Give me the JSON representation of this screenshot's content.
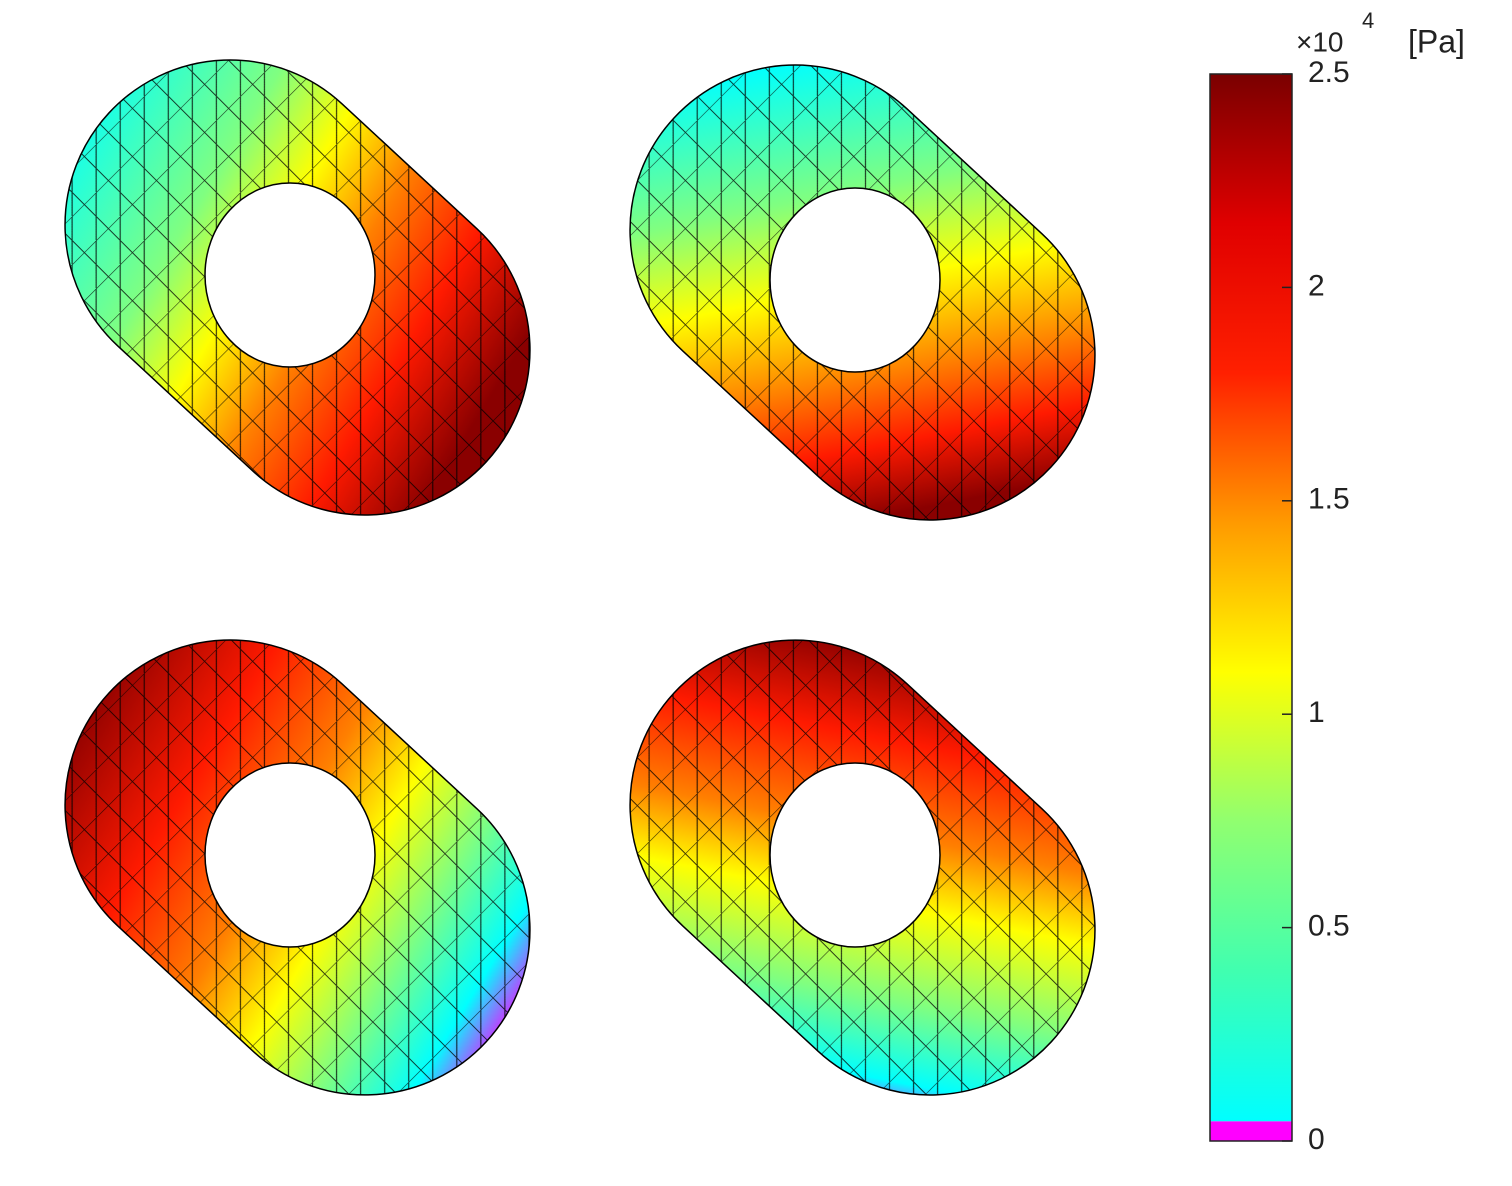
{
  "chart_data": {
    "type": "colorbar",
    "multiplier": {
      "base": "×10",
      "exponent": "4"
    },
    "label": "[Pa]",
    "clim": [
      0,
      2.5
    ],
    "ticks": [
      0,
      0.5,
      1,
      1.5,
      2,
      2.5
    ],
    "underflow_color": "#ff00ff",
    "colormap": [
      "#00ffff",
      "#40ffb0",
      "#90ff70",
      "#ffff00",
      "#ff9a00",
      "#ff2000",
      "#e00000",
      "#7a0000"
    ]
  }
}
